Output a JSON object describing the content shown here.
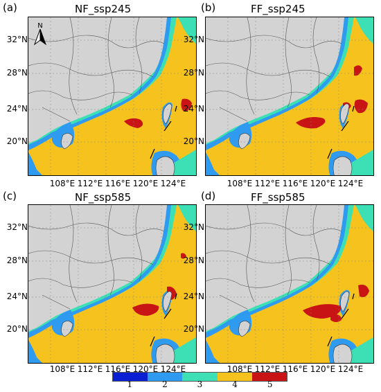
{
  "panels": [
    {
      "label": "(a)",
      "title": "NF_ssp245"
    },
    {
      "label": "(b)",
      "title": "FF_ssp245"
    },
    {
      "label": "(c)",
      "title": "NF_ssp585"
    },
    {
      "label": "(d)",
      "title": "FF_ssp585"
    }
  ],
  "lat_ticks": [
    "32°N",
    "28°N",
    "24°N",
    "20°N"
  ],
  "lon_ticks": [
    "108°E",
    "112°E",
    "116°E",
    "120°E",
    "124°E"
  ],
  "north_arrow": {
    "label": "N",
    "icon": "north-arrow-icon"
  },
  "colorbar": {
    "classes": [
      "1",
      "2",
      "3",
      "4",
      "5"
    ],
    "colors": [
      "#0a1fd1",
      "#2f9bf0",
      "#3de0b4",
      "#f5c21e",
      "#c81414"
    ]
  },
  "colors": {
    "land": "#d3d3d3",
    "border": "#555555"
  }
}
